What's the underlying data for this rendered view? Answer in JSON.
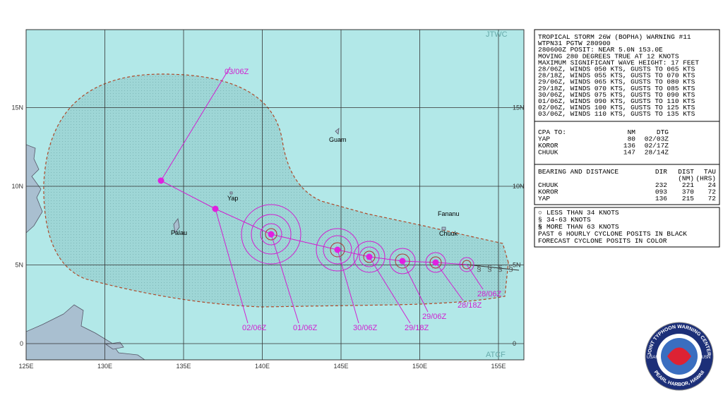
{
  "map": {
    "agency_top": "JTWC",
    "agency_bottom": "ATCF",
    "lon_labels": [
      "125E",
      "130E",
      "135E",
      "140E",
      "145E",
      "150E",
      "155E"
    ],
    "lat_labels": [
      "15N",
      "10N",
      "5N",
      "0"
    ],
    "places": [
      "Guam",
      "Yap",
      "Palau",
      "Fananu",
      "Chuuk"
    ],
    "forecast_labels": [
      "28/06Z",
      "28/18Z",
      "29/06Z",
      "29/18Z",
      "30/06Z",
      "01/06Z",
      "02/06Z",
      "03/06Z"
    ]
  },
  "warning": {
    "lines": [
      "TROPICAL STORM 26W (BOPHA) WARNING #11",
      "WTPN31 PGTW 280900",
      "280600Z POSIT: NEAR 5.0N 153.0E",
      "MOVING 280 DEGREES TRUE AT 12 KNOTS",
      "MAXIMUM SIGNIFICANT WAVE HEIGHT: 17 FEET",
      "28/06Z, WINDS 050 KTS, GUSTS TO 065 KTS",
      "28/18Z, WINDS 055 KTS, GUSTS TO 070 KTS",
      "29/06Z, WINDS 065 KTS, GUSTS TO 080 KTS",
      "29/18Z, WINDS 070 KTS, GUSTS TO 085 KTS",
      "30/06Z, WINDS 075 KTS, GUSTS TO 090 KTS",
      "01/06Z, WINDS 090 KTS, GUSTS TO 110 KTS",
      "02/06Z, WINDS 100 KTS, GUSTS TO 125 KTS",
      "03/06Z, WINDS 110 KTS, GUSTS TO 135 KTS"
    ]
  },
  "cpa": {
    "header": [
      "CPA TO:",
      "NM",
      "DTG"
    ],
    "rows": [
      [
        "YAP",
        "80",
        "02/03Z"
      ],
      [
        "KOROR",
        "136",
        "02/17Z"
      ],
      [
        "CHUUK",
        "147",
        "28/14Z"
      ]
    ]
  },
  "bearing": {
    "header": [
      "BEARING AND DISTANCE",
      "DIR",
      "DIST",
      "TAU"
    ],
    "subheader": [
      "(NM)",
      "(HRS)"
    ],
    "rows": [
      [
        "CHUUK",
        "232",
        "221",
        "24"
      ],
      [
        "KOROR",
        "093",
        "370",
        "72"
      ],
      [
        "YAP",
        "136",
        "215",
        "72"
      ]
    ]
  },
  "legend": {
    "items": [
      "LESS THAN 34 KNOTS",
      "34-63 KNOTS",
      "MORE THAN 63 KNOTS"
    ],
    "notes": [
      "PAST 6 HOURLY CYCLONE POSITS IN BLACK",
      "FORECAST CYCLONE POSITS IN COLOR"
    ]
  },
  "logo": {
    "top": "JOINT TYPHOON WARNING CENTER",
    "bottom": "PEARL HARBOR, HAWAII",
    "left": "USAF",
    "right": "USN"
  }
}
